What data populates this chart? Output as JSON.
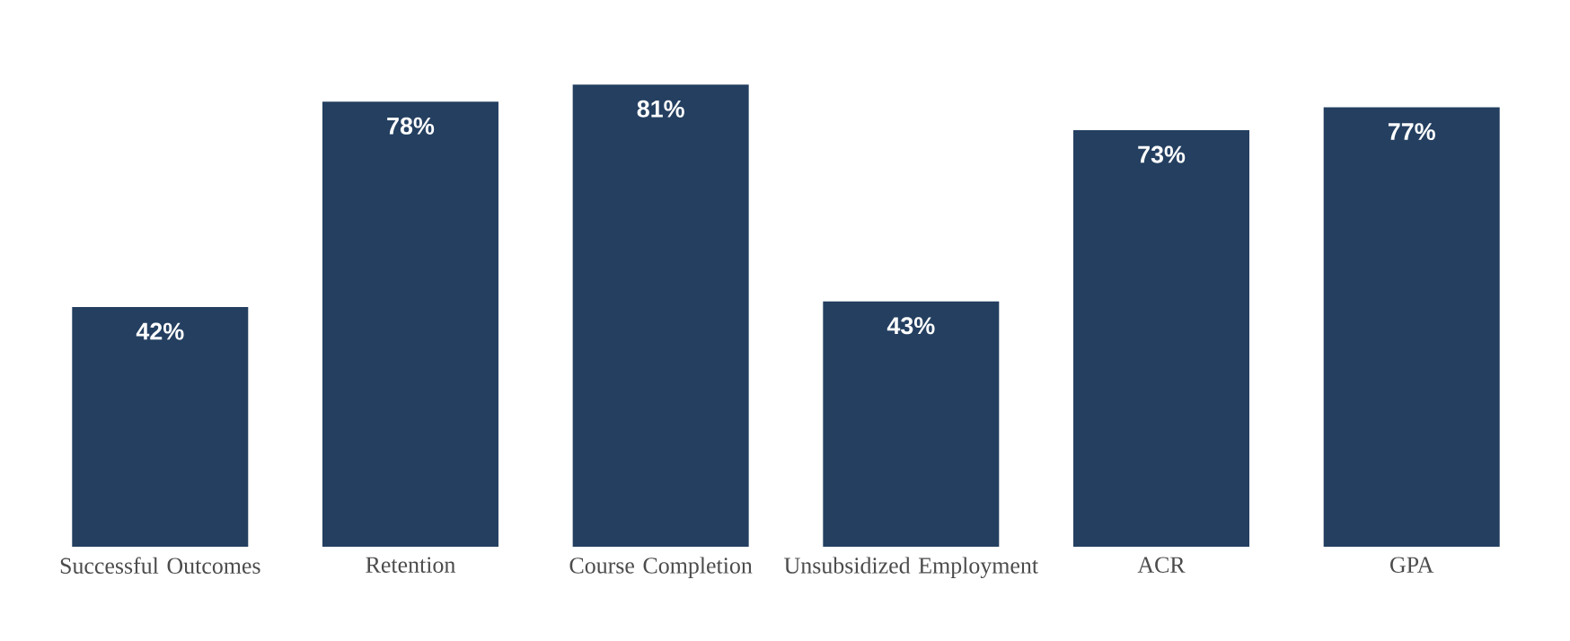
{
  "chart_data": {
    "type": "bar",
    "categories": [
      "Successful Outcomes",
      "Retention",
      "Course Completion",
      "Unsubsidized Employment",
      "ACR",
      "GPA"
    ],
    "values": [
      42,
      78,
      81,
      43,
      73,
      77
    ],
    "value_labels": [
      "42%",
      "78%",
      "81%",
      "43%",
      "73%",
      "77%"
    ],
    "color": "#243f60"
  }
}
